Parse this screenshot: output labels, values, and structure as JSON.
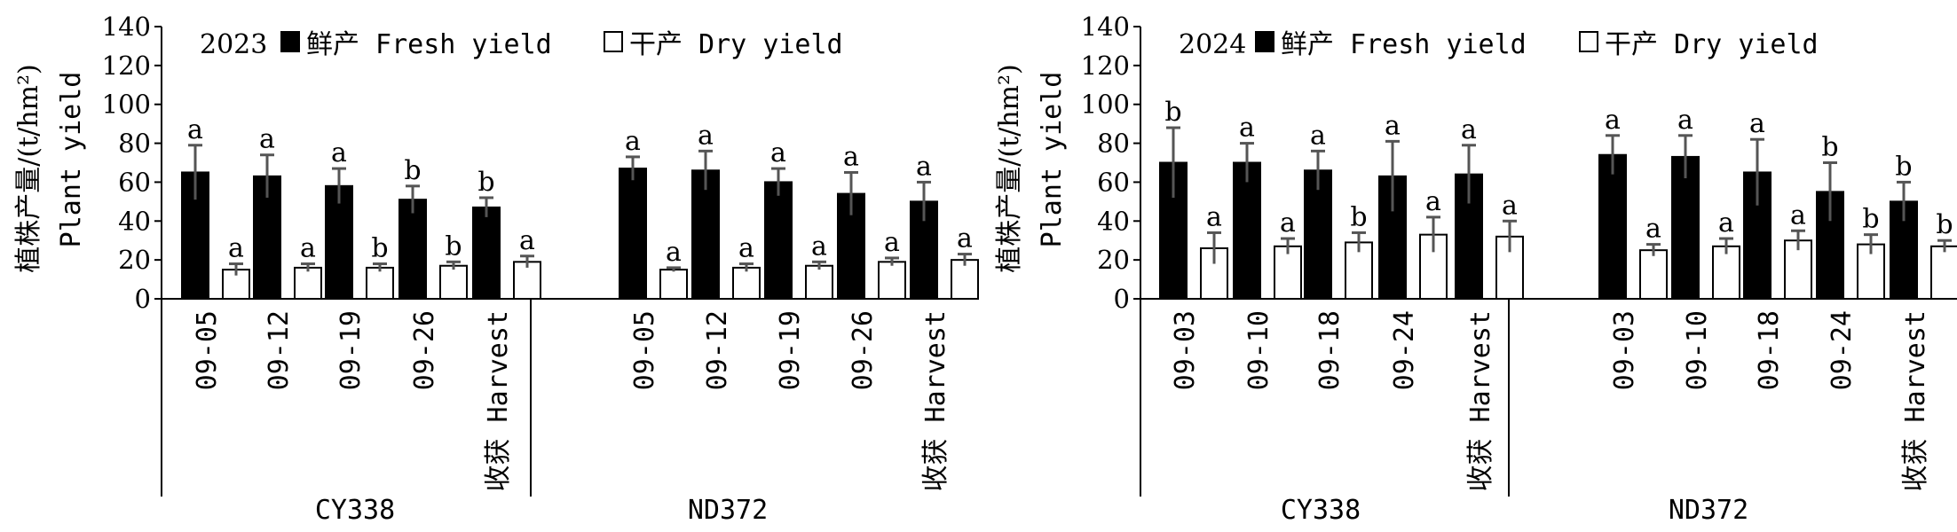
{
  "chart_data": [
    {
      "type": "bar",
      "panel_label": "2023",
      "ylabel_cn": "植株产量/(t/hm²)",
      "ylabel_en": "Plant yield",
      "yticks": [
        "0",
        "20",
        "40",
        "60",
        "80",
        "100",
        "120",
        "140"
      ],
      "ylim": [
        0,
        140
      ],
      "legend": {
        "fresh": "鲜产 Fresh yield",
        "dry": "干产 Dry yield",
        "placement": "top"
      },
      "groups": [
        {
          "name": "CY338",
          "categories": [
            "09-05",
            "09-12",
            "09-19",
            "09-26",
            "收获 Harvest"
          ],
          "fresh": [
            65,
            63,
            58,
            51,
            47
          ],
          "fresh_err": [
            14,
            11,
            9,
            7,
            5
          ],
          "fresh_sig": [
            "a",
            "a",
            "a",
            "b",
            "b"
          ],
          "dry": [
            15,
            16,
            16,
            17,
            19
          ],
          "dry_err": [
            3,
            2,
            2,
            2,
            3
          ],
          "dry_sig": [
            "a",
            "a",
            "b",
            "b",
            "a"
          ]
        },
        {
          "name": "ND372",
          "categories": [
            "09-05",
            "09-12",
            "09-19",
            "09-26",
            "收获 Harvest"
          ],
          "fresh": [
            67,
            66,
            60,
            54,
            50
          ],
          "fresh_err": [
            6,
            10,
            7,
            11,
            10
          ],
          "fresh_sig": [
            "a",
            "a",
            "a",
            "a",
            "a"
          ],
          "dry": [
            15,
            16,
            17,
            19,
            20
          ],
          "dry_err": [
            1,
            2,
            2,
            2,
            3
          ],
          "dry_sig": [
            "a",
            "a",
            "a",
            "a",
            "a"
          ]
        }
      ],
      "series_colors": {
        "fresh": "#000000",
        "dry": "#ffffff"
      }
    },
    {
      "type": "bar",
      "panel_label": "2024",
      "ylabel_cn": "植株产量/(t/hm²)",
      "ylabel_en": "Plant yield",
      "yticks": [
        "0",
        "20",
        "40",
        "60",
        "80",
        "100",
        "120",
        "140"
      ],
      "ylim": [
        0,
        140
      ],
      "legend": {
        "fresh": "鲜产 Fresh yield",
        "dry": "干产 Dry yield",
        "placement": "top"
      },
      "groups": [
        {
          "name": "CY338",
          "categories": [
            "09-03",
            "09-10",
            "09-18",
            "09-24",
            "收获 Harvest"
          ],
          "fresh": [
            70,
            70,
            66,
            63,
            64
          ],
          "fresh_err": [
            18,
            10,
            10,
            18,
            15
          ],
          "fresh_sig": [
            "b",
            "a",
            "a",
            "a",
            "a"
          ],
          "dry": [
            26,
            27,
            29,
            33,
            32
          ],
          "dry_err": [
            8,
            4,
            5,
            9,
            8
          ],
          "dry_sig": [
            "a",
            "a",
            "b",
            "a",
            "a"
          ]
        },
        {
          "name": "ND372",
          "categories": [
            "09-03",
            "09-10",
            "09-18",
            "09-24",
            "收获 Harvest"
          ],
          "fresh": [
            74,
            73,
            65,
            55,
            50
          ],
          "fresh_err": [
            10,
            11,
            17,
            15,
            10
          ],
          "fresh_sig": [
            "a",
            "a",
            "a",
            "b",
            "b"
          ],
          "dry": [
            25,
            27,
            30,
            28,
            27
          ],
          "dry_err": [
            3,
            4,
            5,
            5,
            3
          ],
          "dry_sig": [
            "a",
            "a",
            "a",
            "b",
            "b"
          ]
        }
      ],
      "series_colors": {
        "fresh": "#000000",
        "dry": "#ffffff"
      }
    }
  ]
}
